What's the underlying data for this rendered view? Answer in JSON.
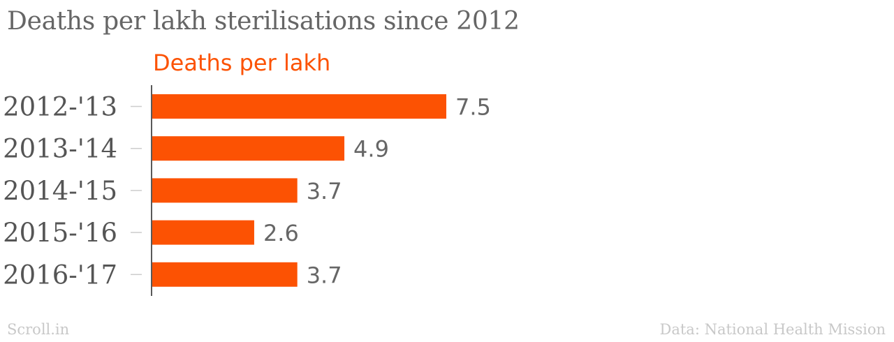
{
  "chart_data": {
    "type": "bar",
    "orientation": "horizontal",
    "title": "Deaths per lakh sterilisations since 2012",
    "categories": [
      "2012-'13",
      "2013-'14",
      "2014-'15",
      "2015-'16",
      "2016-'17"
    ],
    "series": [
      {
        "name": "Deaths per lakh",
        "values": [
          7.5,
          4.9,
          3.7,
          2.6,
          3.7
        ],
        "color": "#fc5203"
      }
    ],
    "value_labels": [
      "7.5",
      "4.9",
      "3.7",
      "2.6",
      "3.7"
    ],
    "xlim": [
      0,
      7.5
    ],
    "grid": false,
    "colors": {
      "bar": "#fc5203",
      "series_label": "#fc5203",
      "axis": "#222222",
      "tick": "#cccccc"
    }
  },
  "footer": {
    "source_left": "Scroll.in",
    "source_right": "Data: National Health Mission"
  }
}
